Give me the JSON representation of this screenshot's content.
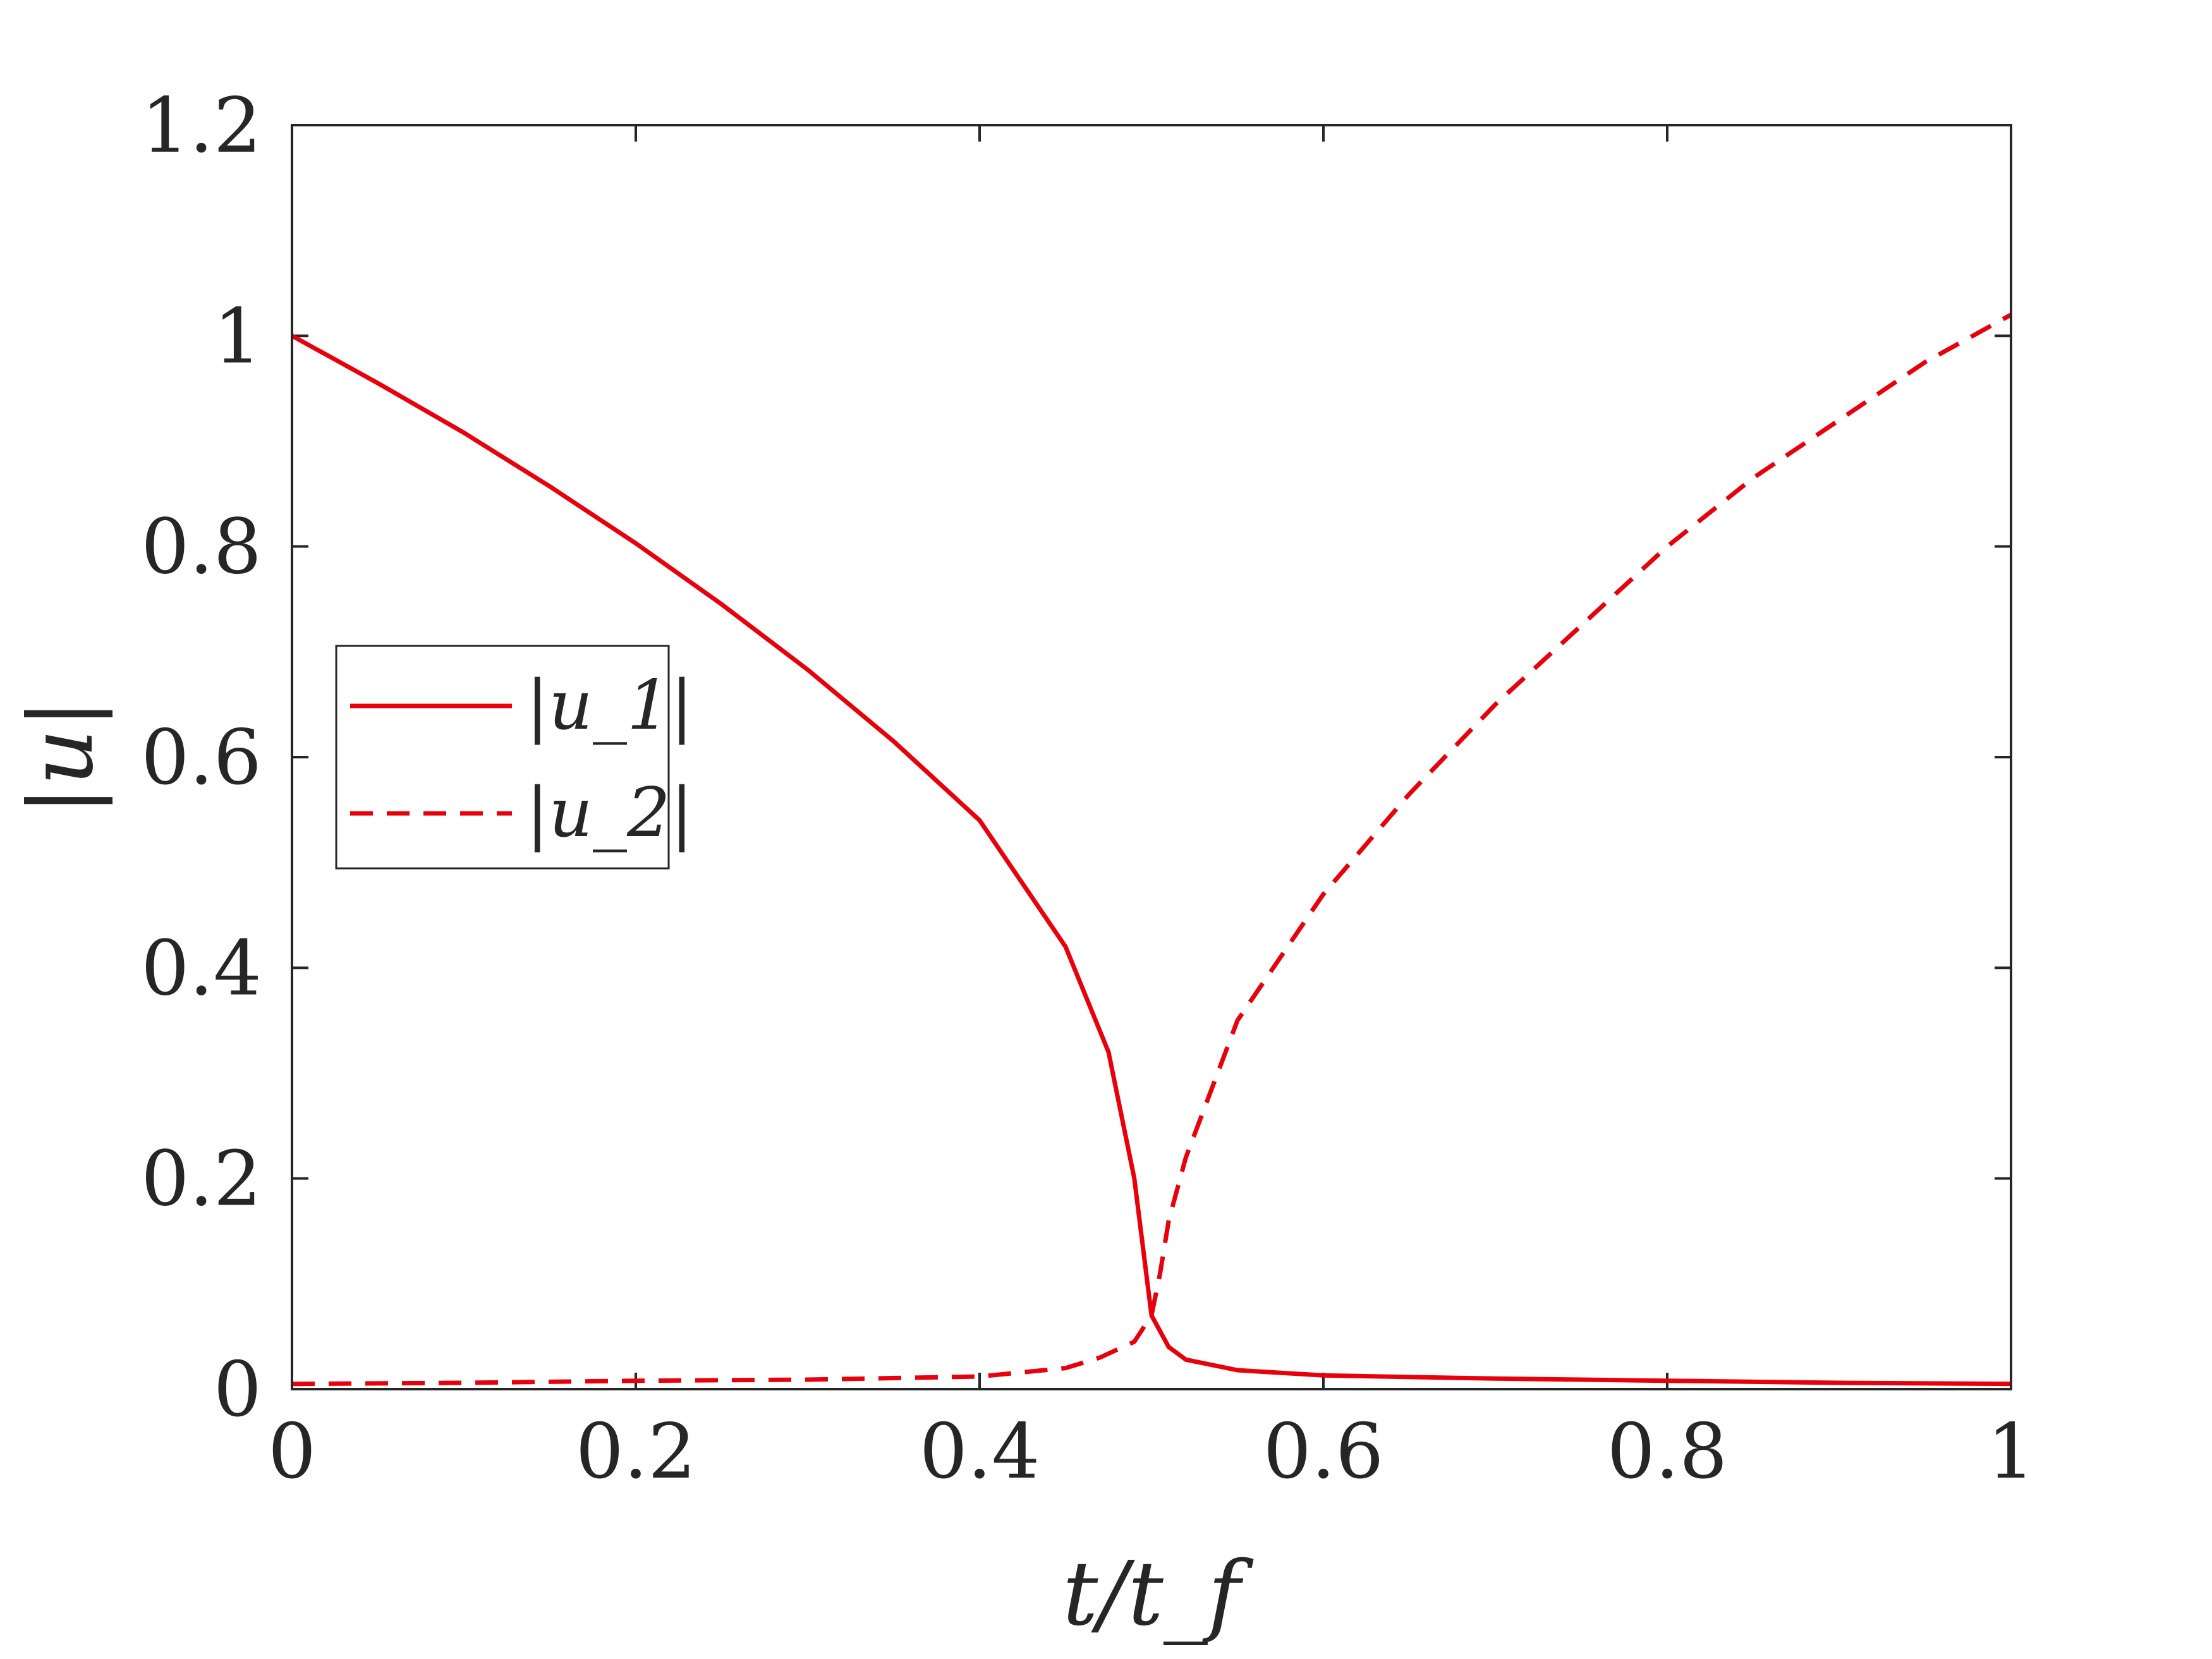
{
  "chart_data": {
    "type": "line",
    "xlabel": "t/t_f",
    "ylabel": "|u|",
    "xlim": [
      0,
      1
    ],
    "ylim": [
      0,
      1.2
    ],
    "xticks": [
      "0",
      "0.2",
      "0.4",
      "0.6",
      "0.8",
      "1"
    ],
    "yticks": [
      "0",
      "0.2",
      "0.4",
      "0.6",
      "0.8",
      "1",
      "1.2"
    ],
    "grid": false,
    "legend_position": "center-left",
    "colors": {
      "series": "#e8000b",
      "axes": "#262626"
    },
    "series": [
      {
        "name": "|u_1|",
        "style": "solid",
        "x": [
          0,
          0.05,
          0.1,
          0.15,
          0.2,
          0.25,
          0.3,
          0.35,
          0.4,
          0.45,
          0.475,
          0.49,
          0.5,
          0.51,
          0.52,
          0.55,
          0.6,
          0.7,
          0.8,
          0.9,
          1.0
        ],
        "y": [
          1.0,
          0.955,
          0.908,
          0.857,
          0.803,
          0.745,
          0.683,
          0.615,
          0.54,
          0.42,
          0.32,
          0.2,
          0.07,
          0.04,
          0.028,
          0.018,
          0.013,
          0.01,
          0.008,
          0.006,
          0.005
        ]
      },
      {
        "name": "|u_2|",
        "style": "dashed",
        "x": [
          0,
          0.1,
          0.2,
          0.3,
          0.4,
          0.45,
          0.47,
          0.49,
          0.5,
          0.505,
          0.51,
          0.52,
          0.55,
          0.6,
          0.65,
          0.7,
          0.75,
          0.8,
          0.85,
          0.9,
          0.95,
          1.0
        ],
        "y": [
          0.005,
          0.006,
          0.008,
          0.009,
          0.012,
          0.02,
          0.03,
          0.045,
          0.07,
          0.11,
          0.16,
          0.22,
          0.35,
          0.47,
          0.565,
          0.65,
          0.725,
          0.8,
          0.865,
          0.92,
          0.975,
          1.02
        ]
      }
    ]
  }
}
